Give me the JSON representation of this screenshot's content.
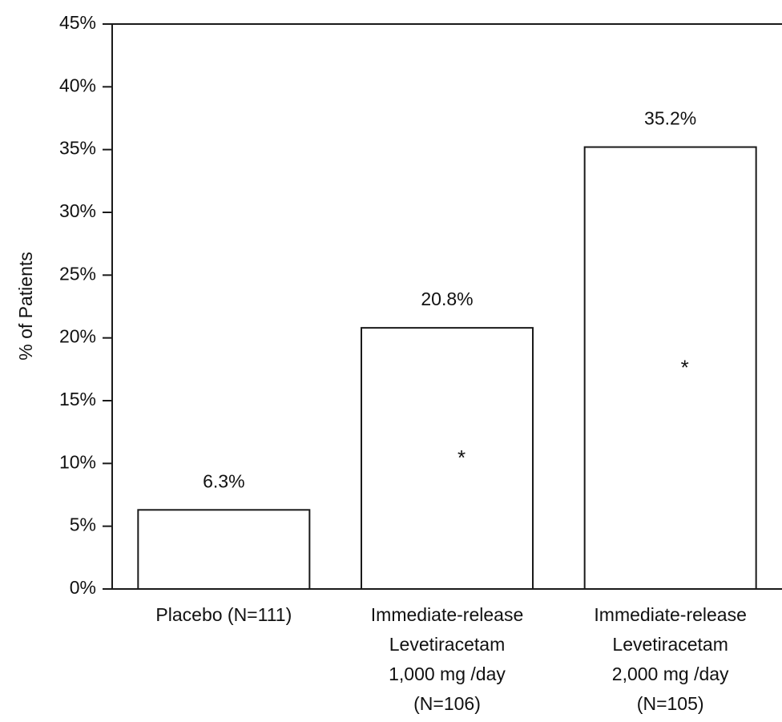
{
  "chart_data": {
    "type": "bar",
    "ylabel": "% of Patients",
    "xlabel": "",
    "ylim": [
      0,
      45
    ],
    "yticks": [
      0,
      5,
      10,
      15,
      20,
      25,
      30,
      35,
      40,
      45
    ],
    "ytick_labels": [
      "0%",
      "5%",
      "10%",
      "15%",
      "20%",
      "25%",
      "30%",
      "35%",
      "40%",
      "45%"
    ],
    "grid": false,
    "categories": [
      {
        "lines": [
          "Placebo (N=111)"
        ]
      },
      {
        "lines": [
          "Immediate-release",
          "Levetiracetam",
          "1,000 mg /day",
          "(N=106)"
        ]
      },
      {
        "lines": [
          "Immediate-release",
          "Levetiracetam",
          "2,000 mg /day",
          "(N=105)"
        ]
      }
    ],
    "values": [
      6.3,
      20.8,
      35.2
    ],
    "value_labels": [
      "6.3%",
      "20.8%",
      "35.2%"
    ],
    "annotations": [
      "",
      "*",
      "*"
    ],
    "bar_fill": "#ffffff",
    "bar_stroke": "#1a1a1a",
    "axis_color": "#1a1a1a"
  }
}
